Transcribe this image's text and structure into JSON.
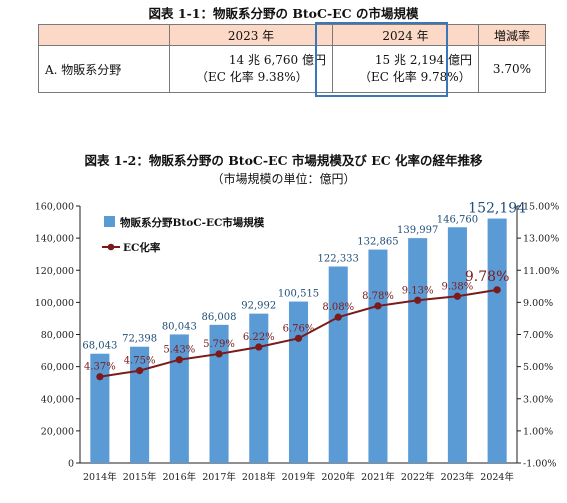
{
  "table_section": {
    "title": "図表 1-1：物販系分野の BtoC-EC の市場規模",
    "headers": [
      "",
      "2023 年",
      "2024 年",
      "増減率"
    ],
    "row": {
      "category": "A. 物販系分野",
      "y2023_amount": "14 兆 6,760 億円",
      "y2023_rate": "（EC 化率 9.38%）",
      "y2024_amount": "15 兆 2,194 億円",
      "y2024_rate": "（EC 化率 9.78%）",
      "change": "3.70%"
    }
  },
  "chart_data": {
    "type": "bar",
    "title": "図表 1-2：物販系分野の BtoC-EC 市場規模及び EC 化率の経年推移",
    "subtitle": "（市場規模の単位：億円）",
    "categories": [
      "2014年",
      "2015年",
      "2016年",
      "2017年",
      "2018年",
      "2019年",
      "2020年",
      "2021年",
      "2022年",
      "2023年",
      "2024年"
    ],
    "series": [
      {
        "name": "物販系分野BtoC-EC市場規模",
        "kind": "bar",
        "axis": "left",
        "values": [
          68043,
          72398,
          80043,
          86008,
          92992,
          100515,
          122333,
          132865,
          139997,
          146760,
          152194
        ],
        "labels": [
          "68,043",
          "72,398",
          "80,043",
          "86,008",
          "92,992",
          "100,515",
          "122,333",
          "132,865",
          "139,997",
          "146,760",
          "152,194"
        ],
        "color": "#5b9bd5"
      },
      {
        "name": "EC化率",
        "kind": "line",
        "axis": "right",
        "values": [
          4.37,
          4.75,
          5.43,
          5.79,
          6.22,
          6.76,
          8.08,
          8.78,
          9.13,
          9.38,
          9.78
        ],
        "labels": [
          "4.37%",
          "4.75%",
          "5.43%",
          "5.79%",
          "6.22%",
          "6.76%",
          "8.08%",
          "8.78%",
          "9.13%",
          "9.38%",
          "9.78%"
        ],
        "color": "#7b1a1a"
      }
    ],
    "y_left": {
      "min": 0,
      "max": 160000,
      "ticks": [
        "0",
        "20,000",
        "40,000",
        "60,000",
        "80,000",
        "100,000",
        "120,000",
        "140,000",
        "160,000"
      ]
    },
    "y_right": {
      "min": -1,
      "max": 15,
      "ticks": [
        "-1.00%",
        "1.00%",
        "3.00%",
        "5.00%",
        "7.00%",
        "9.00%",
        "11.00%",
        "13.00%",
        "15.00%"
      ]
    },
    "legend_position": "top-left",
    "grid": false,
    "label_color": "#1f4e79",
    "axis_color": "#1f1f1f"
  }
}
